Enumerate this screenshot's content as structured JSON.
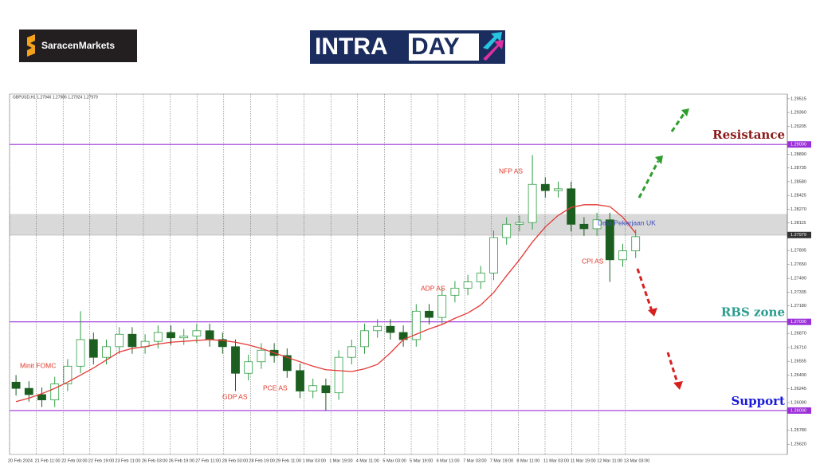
{
  "brand": {
    "name": "SaracenMarkets",
    "badge_left": "INTRA",
    "badge_right": "DAY"
  },
  "chart_data": {
    "type": "candlestick",
    "symbol": "GBPUSD,H1 1.27946 1.27986 1.27924 1.27979",
    "ylim": [
      1.25505,
      1.29568
    ],
    "yticks": [
      1.29515,
      {
        "value": 1.2936,
        "label": "1.29360"
      },
      1.29205,
      {
        "value": 1.2889,
        "label": "1.28890"
      },
      1.28735,
      {
        "value": 1.2858,
        "label": "1.28580"
      },
      1.28425,
      {
        "value": 1.2827,
        "label": "1.28270"
      },
      1.28115,
      1.27805,
      {
        "value": 1.2765,
        "label": "1.27650"
      },
      {
        "value": 1.2749,
        "label": "1.27490"
      },
      1.27335,
      {
        "value": 1.2718,
        "label": "1.27180"
      },
      {
        "value": 1.2687,
        "label": "1.26870"
      },
      {
        "value": 1.2671,
        "label": "1.26710"
      },
      1.26555,
      {
        "value": 1.264,
        "label": "1.26400"
      },
      1.26245,
      {
        "value": 1.2609,
        "label": "1.26090"
      },
      {
        "value": 1.2578,
        "label": "1.25780"
      },
      {
        "value": 1.2562,
        "label": "1.25620"
      }
    ],
    "xticks": [
      "20 Feb 2024",
      "21 Feb 11:00",
      "22 Feb 03:00",
      "22 Feb 19:00",
      "23 Feb 11:00",
      "26 Feb 03:00",
      "26 Feb 19:00",
      "27 Feb 11:00",
      "28 Feb 03:00",
      "28 Feb 19:00",
      "29 Feb 11:00",
      "1 Mar 03:00",
      "1 Mar 19:00",
      "4 Mar 11:00",
      "5 Mar 03:00",
      "5 Mar 19:00",
      "6 Mar 11:00",
      "7 Mar 03:00",
      "7 Mar 19:00",
      "8 Mar 11:00",
      "11 Mar 03:00",
      "11 Mar 19:00",
      "12 Mar 11:00",
      "13 Mar 03:00"
    ],
    "series": [
      {
        "up_color": "#2f9e44",
        "down_color": "#1b5e20",
        "open": [
          1.2632,
          1.2625,
          1.2618,
          1.2612,
          1.263,
          1.265,
          1.268,
          1.266,
          1.2672,
          1.2686,
          1.2672,
          1.2678,
          1.2688,
          1.2682,
          1.2684,
          1.269,
          1.268,
          1.2672,
          1.2642,
          1.2655,
          1.2668,
          1.2662,
          1.2645,
          1.2622,
          1.2628,
          1.262,
          1.266,
          1.2672,
          1.269,
          1.2695,
          1.2688,
          1.268,
          1.2712,
          1.2705,
          1.273,
          1.2738,
          1.2745,
          1.2755,
          1.2795,
          1.281,
          1.2812,
          1.2855,
          1.2848,
          1.285,
          1.281,
          1.2805,
          1.2815,
          1.277,
          1.278
        ],
        "high": [
          1.264,
          1.2633,
          1.2626,
          1.2638,
          1.2658,
          1.2712,
          1.2688,
          1.268,
          1.2694,
          1.2694,
          1.2686,
          1.2696,
          1.2696,
          1.2692,
          1.2698,
          1.2698,
          1.2688,
          1.268,
          1.2663,
          1.2676,
          1.2676,
          1.267,
          1.2653,
          1.2636,
          1.2636,
          1.2668,
          1.268,
          1.2698,
          1.2703,
          1.2703,
          1.2696,
          1.272,
          1.272,
          1.2738,
          1.2746,
          1.2753,
          1.2763,
          1.2803,
          1.2818,
          1.282,
          1.2888,
          1.2863,
          1.2858,
          1.2858,
          1.2818,
          1.2823,
          1.2823,
          1.2788,
          1.2804
        ],
        "low": [
          1.2617,
          1.261,
          1.2604,
          1.2604,
          1.2622,
          1.2642,
          1.2652,
          1.2652,
          1.2664,
          1.2664,
          1.2664,
          1.267,
          1.2674,
          1.2674,
          1.2676,
          1.2672,
          1.2664,
          1.2622,
          1.2634,
          1.2647,
          1.2654,
          1.2637,
          1.2614,
          1.2614,
          1.26,
          1.2612,
          1.2652,
          1.2664,
          1.2682,
          1.268,
          1.2672,
          1.2672,
          1.2697,
          1.2697,
          1.2722,
          1.273,
          1.2737,
          1.2747,
          1.2787,
          1.2802,
          1.2804,
          1.284,
          1.284,
          1.2802,
          1.2797,
          1.2797,
          1.2745,
          1.2762,
          1.2772
        ],
        "close": [
          1.2625,
          1.2618,
          1.2612,
          1.263,
          1.265,
          1.268,
          1.266,
          1.2672,
          1.2686,
          1.2672,
          1.2678,
          1.2688,
          1.2682,
          1.2684,
          1.269,
          1.268,
          1.2672,
          1.2642,
          1.2655,
          1.2668,
          1.2662,
          1.2645,
          1.2622,
          1.2628,
          1.262,
          1.266,
          1.2672,
          1.269,
          1.2695,
          1.2688,
          1.268,
          1.2712,
          1.2705,
          1.273,
          1.2738,
          1.2745,
          1.2755,
          1.2795,
          1.281,
          1.2812,
          1.2855,
          1.2848,
          1.285,
          1.281,
          1.2805,
          1.2815,
          1.277,
          1.278,
          1.2796
        ]
      },
      {
        "color": "#e53935",
        "values": [
          1.261,
          1.2614,
          1.2619,
          1.2625,
          1.2632,
          1.264,
          1.2648,
          1.2657,
          1.2666,
          1.267,
          1.2672,
          1.2675,
          1.2677,
          1.2678,
          1.2679,
          1.268,
          1.2679,
          1.2677,
          1.2674,
          1.267,
          1.2665,
          1.266,
          1.2655,
          1.265,
          1.2646,
          1.2645,
          1.2644,
          1.2647,
          1.2652,
          1.2665,
          1.268,
          1.2686,
          1.2692,
          1.2697,
          1.2704,
          1.271,
          1.2719,
          1.2733,
          1.2752,
          1.277,
          1.279,
          1.2807,
          1.282,
          1.2829,
          1.2832,
          1.2832,
          1.283,
          1.2818,
          1.28
        ]
      }
    ],
    "zone": {
      "from": 1.27973,
      "to": 1.28216,
      "color": "#d9d9d9"
    },
    "levels": [
      {
        "name": "Resistance",
        "value": 1.29,
        "label": "1.29000",
        "color": "#9b30d9",
        "name_color": "#8b1a1a"
      },
      {
        "name": "RBS zone",
        "value": 1.27,
        "label": "1.27000",
        "color": "#9b30d9",
        "name_color": "#2a9d8f"
      },
      {
        "name": "Support",
        "value": 1.26,
        "label": "1.26000",
        "color": "#9b30d9",
        "name_color": "#1a1adb"
      }
    ],
    "current_price": {
      "value": 1.27979,
      "label": "1.27979"
    },
    "annotations": [
      "Minit FOMC",
      "GDP AS",
      "PCE AS",
      "ADP AS",
      "NFP AS",
      "CPI AS",
      "Data Pekerjaan UK"
    ]
  }
}
